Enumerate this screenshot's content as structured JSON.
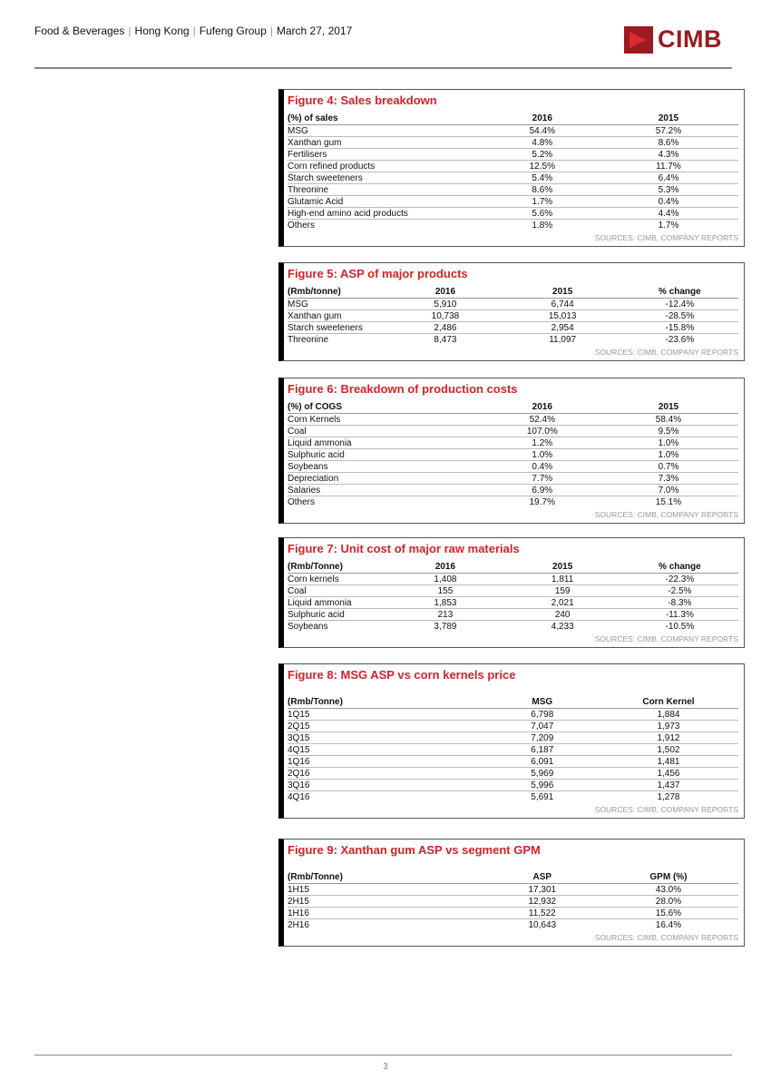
{
  "header": {
    "crumbs": [
      "Food & Beverages",
      "Hong Kong",
      "Fufeng Group",
      "March 27, 2017"
    ],
    "logo": "CIMB"
  },
  "figures": [
    {
      "title": "Figure 4: Sales breakdown",
      "cols": [
        "(%) of sales",
        "2016",
        "2015"
      ],
      "rows": [
        [
          "MSG",
          "54.4%",
          "57.2%"
        ],
        [
          "Xanthan gum",
          "4.8%",
          "8.6%"
        ],
        [
          "Fertilisers",
          "5.2%",
          "4.3%"
        ],
        [
          "Corn refined products",
          "12.5%",
          "11.7%"
        ],
        [
          "Starch sweeteners",
          "5.4%",
          "6.4%"
        ],
        [
          "Threonine",
          "8.6%",
          "5.3%"
        ],
        [
          "Glutamic Acid",
          "1.7%",
          "0.4%"
        ],
        [
          "High-end amino acid products",
          "5.6%",
          "4.4%"
        ],
        [
          "Others",
          "1.8%",
          "1.7%"
        ]
      ],
      "source": "SOURCES: CIMB, COMPANY REPORTS"
    },
    {
      "title": "Figure 5: ASP of major products",
      "cols": [
        "(Rmb/tonne)",
        "2016",
        "2015",
        "% change"
      ],
      "rows": [
        [
          "MSG",
          "5,910",
          "6,744",
          "-12.4%"
        ],
        [
          "Xanthan gum",
          "10,738",
          "15,013",
          "-28.5%"
        ],
        [
          "Starch sweeteners",
          "2,486",
          "2,954",
          "-15.8%"
        ],
        [
          "Threonine",
          "8,473",
          "11,097",
          "-23.6%"
        ]
      ],
      "source": "SOURCES: CIMB, COMPANY REPORTS"
    },
    {
      "title": "Figure 6: Breakdown of production costs",
      "cols": [
        "(%) of COGS",
        "2016",
        "2015"
      ],
      "rows": [
        [
          "Corn Kernels",
          "52.4%",
          "58.4%"
        ],
        [
          "Coal",
          "107.0%",
          "9.5%"
        ],
        [
          "Liquid ammonia",
          "1.2%",
          "1.0%"
        ],
        [
          "Sulphuric acid",
          "1.0%",
          "1.0%"
        ],
        [
          "Soybeans",
          "0.4%",
          "0.7%"
        ],
        [
          "Depreciation",
          "7.7%",
          "7.3%"
        ],
        [
          "Salaries",
          "6.9%",
          "7.0%"
        ],
        [
          "Others",
          "19.7%",
          "15.1%"
        ]
      ],
      "source": "SOURCES: CIMB, COMPANY REPORTS"
    },
    {
      "title": "Figure 7: Unit cost of major raw materials",
      "cols": [
        "(Rmb/Tonne)",
        "2016",
        "2015",
        "% change"
      ],
      "rows": [
        [
          "Corn kernels",
          "1,408",
          "1,811",
          "-22.3%"
        ],
        [
          "Coal",
          "155",
          "159",
          "-2.5%"
        ],
        [
          "Liquid ammonia",
          "1,853",
          "2,021",
          "-8.3%"
        ],
        [
          "Sulphuric acid",
          "213",
          "240",
          "-11.3%"
        ],
        [
          "Soybeans",
          "3,789",
          "4,233",
          "-10.5%"
        ]
      ],
      "source": "SOURCES: CIMB, COMPANY REPORTS"
    },
    {
      "title": "Figure 8: MSG ASP vs corn kernels price",
      "cols": [
        "(Rmb/Tonne)",
        "MSG",
        "Corn Kernel"
      ],
      "rows": [
        [
          "1Q15",
          "6,798",
          "1,884"
        ],
        [
          "2Q15",
          "7,047",
          "1,973"
        ],
        [
          "3Q15",
          "7,209",
          "1,912"
        ],
        [
          "4Q15",
          "6,187",
          "1,502"
        ],
        [
          "1Q16",
          "6,091",
          "1,481"
        ],
        [
          "2Q16",
          "5,969",
          "1,456"
        ],
        [
          "3Q16",
          "5,996",
          "1,437"
        ],
        [
          "4Q16",
          "5,691",
          "1,278"
        ]
      ],
      "source": "SOURCES: CIMB, COMPANY REPORTS"
    },
    {
      "title": "Figure 9: Xanthan gum ASP vs segment GPM",
      "cols": [
        "(Rmb/Tonne)",
        "ASP",
        "GPM (%)"
      ],
      "rows": [
        [
          "1H15",
          "17,301",
          "43.0%"
        ],
        [
          "2H15",
          "12,932",
          "28.0%"
        ],
        [
          "1H16",
          "11,522",
          "15.6%"
        ],
        [
          "2H16",
          "10,643",
          "16.4%"
        ]
      ],
      "source": "SOURCES: CIMB, COMPANY REPORTS"
    }
  ],
  "footer": {
    "page_number": "3"
  }
}
